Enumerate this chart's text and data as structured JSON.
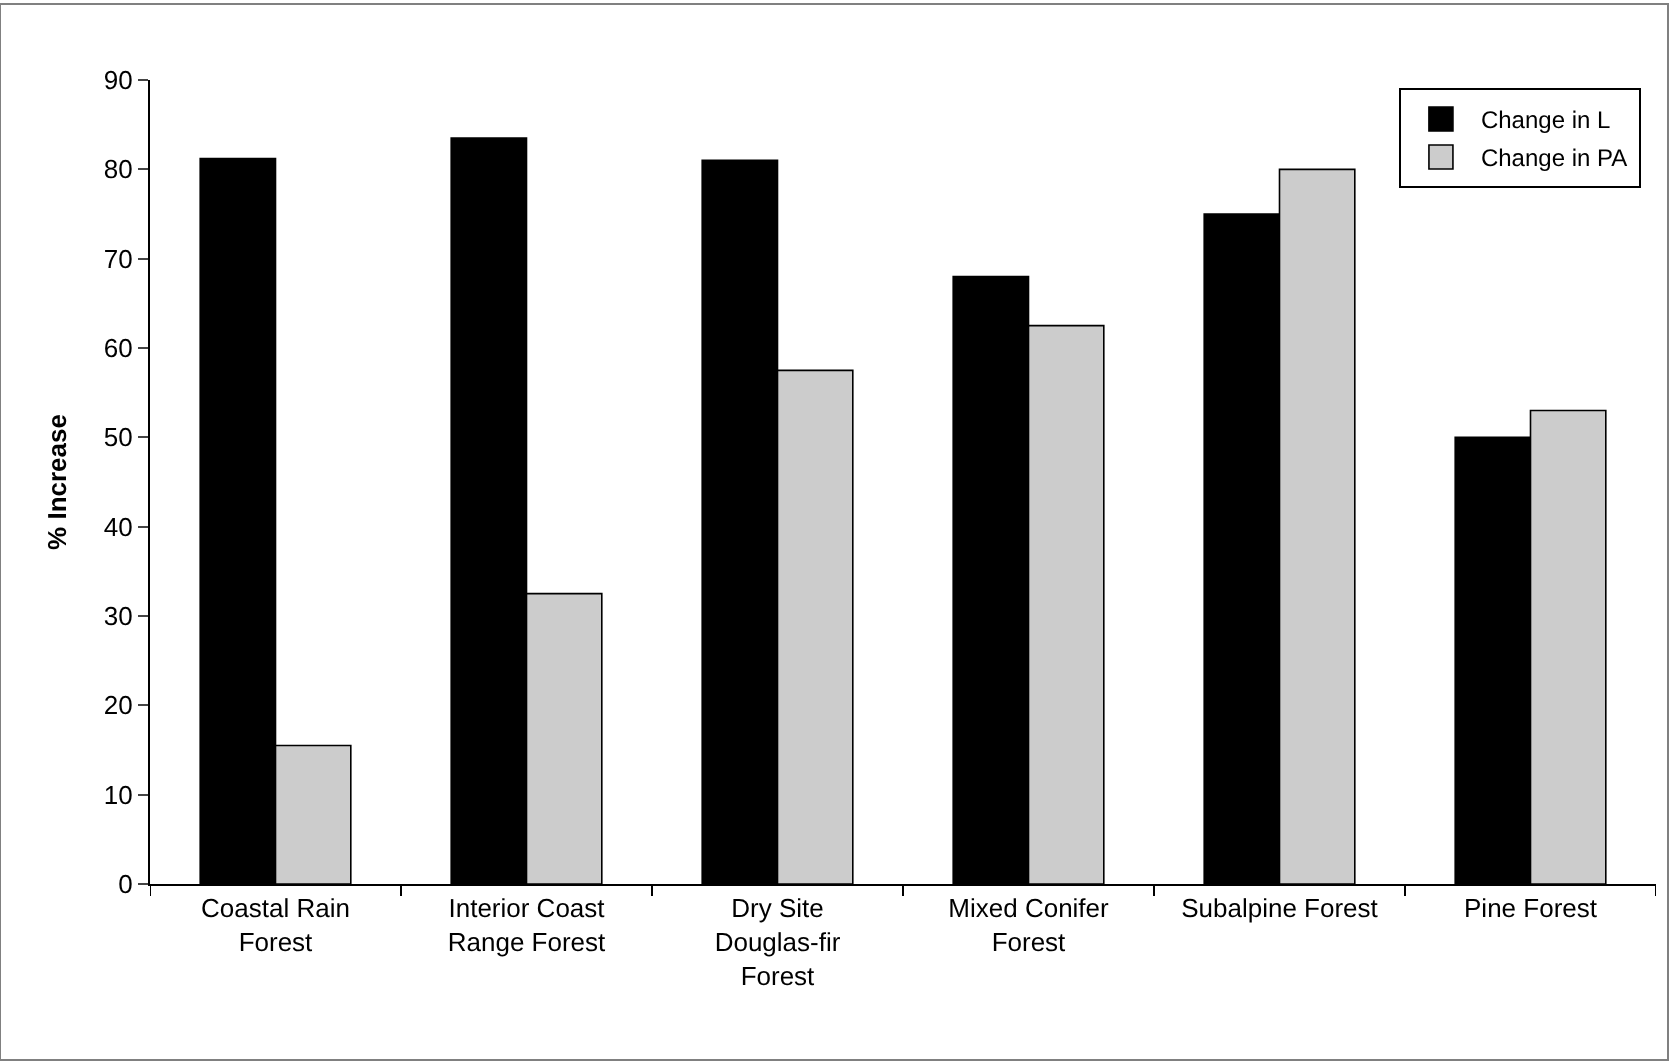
{
  "chart_data": {
    "type": "bar",
    "ylabel": "% Increase",
    "categories": [
      "Coastal Rain Forest",
      "Interior Coast Range Forest",
      "Dry Site Douglas-fir Forest",
      "Mixed Conifer Forest",
      "Subalpine Forest",
      "Pine Forest"
    ],
    "series": [
      {
        "name": "Change in L",
        "color": "#000000",
        "values": [
          81.2,
          83.5,
          81,
          68,
          75,
          50
        ]
      },
      {
        "name": "Change in PA",
        "color": "#cccccc",
        "values": [
          15.5,
          32.5,
          57.5,
          62.5,
          80,
          53
        ]
      }
    ],
    "ylim": [
      0,
      90
    ],
    "yticks": [
      0,
      10,
      20,
      30,
      40,
      50,
      60,
      70,
      80,
      90
    ],
    "legend": "top right"
  }
}
